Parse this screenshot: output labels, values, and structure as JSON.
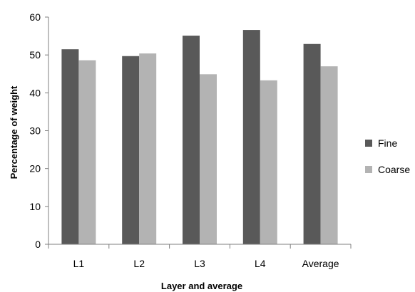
{
  "chart_data": {
    "type": "bar",
    "title": "",
    "xlabel": "Layer and average",
    "ylabel": "Percentage of weight",
    "ylim": [
      0,
      60
    ],
    "yticks": [
      0,
      10,
      20,
      30,
      40,
      50,
      60
    ],
    "categories": [
      "L1",
      "L2",
      "L3",
      "L4",
      "Average"
    ],
    "series": [
      {
        "name": "Fine",
        "values": [
          51.5,
          49.7,
          55.1,
          56.6,
          52.9
        ],
        "color": "#595959"
      },
      {
        "name": "Coarse",
        "values": [
          48.6,
          50.4,
          44.9,
          43.3,
          47.0
        ],
        "color": "#b3b3b3"
      }
    ],
    "grid": false,
    "legend": "right"
  }
}
